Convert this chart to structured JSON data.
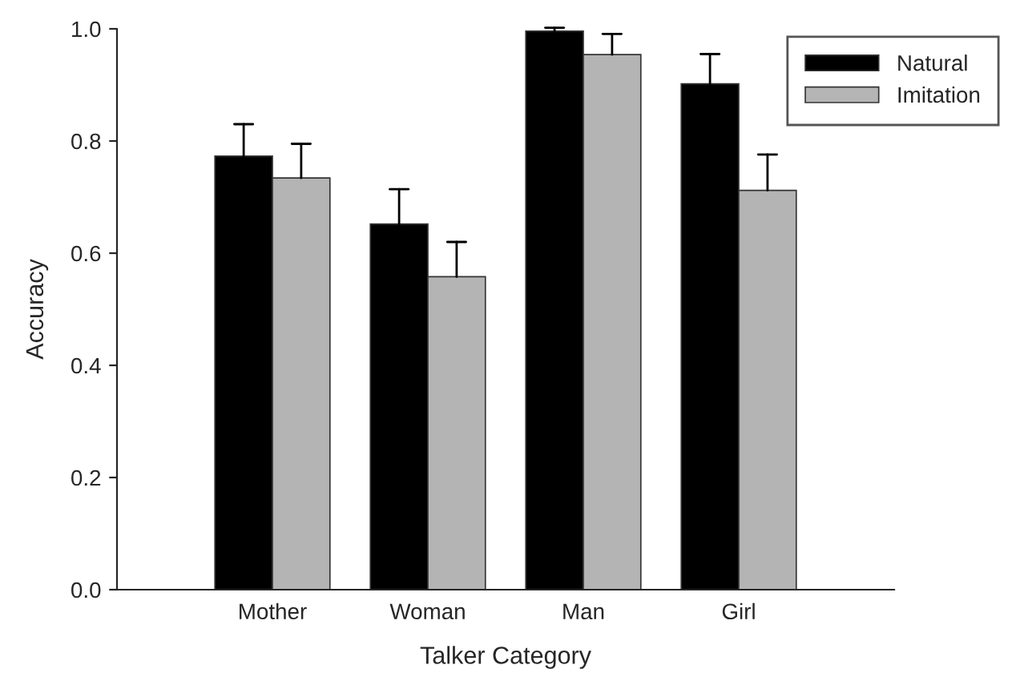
{
  "chart_data": {
    "type": "bar",
    "xlabel": "Talker Category",
    "ylabel": "Accuracy",
    "categories": [
      "Mother",
      "Woman",
      "Man",
      "Girl"
    ],
    "series": [
      {
        "name": "Natural",
        "color": "#000000",
        "values": [
          0.773,
          0.652,
          0.996,
          0.902
        ],
        "errors": [
          [
            0.773,
            0.83
          ],
          [
            0.652,
            0.714
          ],
          [
            0.996,
            1.002
          ],
          [
            0.902,
            0.955
          ]
        ]
      },
      {
        "name": "Imitation",
        "color": "#b4b4b4",
        "values": [
          0.734,
          0.558,
          0.954,
          0.712
        ],
        "errors": [
          [
            0.734,
            0.795
          ],
          [
            0.558,
            0.62
          ],
          [
            0.954,
            0.991
          ],
          [
            0.712,
            0.776
          ]
        ]
      }
    ],
    "ylim": [
      0,
      1.0
    ],
    "yticks": [
      {
        "value": 0,
        "label": "0.0"
      },
      0.2,
      0.4,
      0.6,
      0.8,
      {
        "value": 1,
        "label": "1.0"
      }
    ],
    "grid": false,
    "legend": "top right"
  }
}
